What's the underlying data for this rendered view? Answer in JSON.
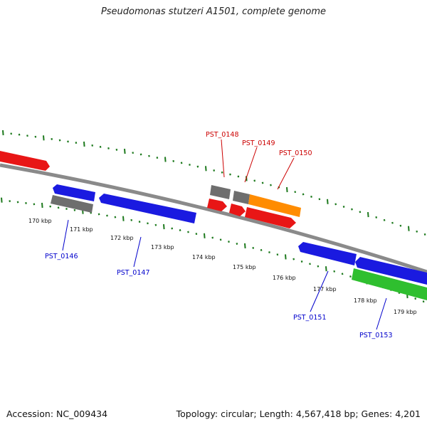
{
  "title": "Pseudomonas stutzeri A1501, complete genome",
  "footer": {
    "accession": "Accession: NC_009434",
    "stats": "Topology: circular; Length: 4,567,418 bp; Genes: 4,201"
  },
  "colors": {
    "backbone": "#8a8a8a",
    "tick": "#1e7a1e",
    "forward_gene": "#e81616",
    "reverse_gene": "#1a1ae0",
    "pseudo_gene": "#6e6e6e",
    "orange_gene": "#ff8c00",
    "green_gene": "#2fbf2f",
    "label_forward": "#cc0000",
    "label_reverse": "#0000cc"
  },
  "axis": {
    "unit": "kbp",
    "ticks": [
      {
        "label": "170 kbp"
      },
      {
        "label": "171 kbp"
      },
      {
        "label": "172 kbp"
      },
      {
        "label": "173 kbp"
      },
      {
        "label": "174 kbp"
      },
      {
        "label": "175 kbp"
      },
      {
        "label": "176 kbp"
      },
      {
        "label": "177 kbp"
      },
      {
        "label": "178 kbp"
      },
      {
        "label": "179 kbp"
      }
    ]
  },
  "gene_labels": [
    {
      "id": "PST_0146",
      "text": "PST_0146"
    },
    {
      "id": "PST_0147",
      "text": "PST_0147"
    },
    {
      "id": "PST_0148",
      "text": "PST_0148"
    },
    {
      "id": "PST_0149",
      "text": "PST_0149"
    },
    {
      "id": "PST_0150",
      "text": "PST_0150"
    },
    {
      "id": "PST_0151",
      "text": "PST_0151"
    },
    {
      "id": "PST_0153",
      "text": "PST_0153"
    }
  ]
}
